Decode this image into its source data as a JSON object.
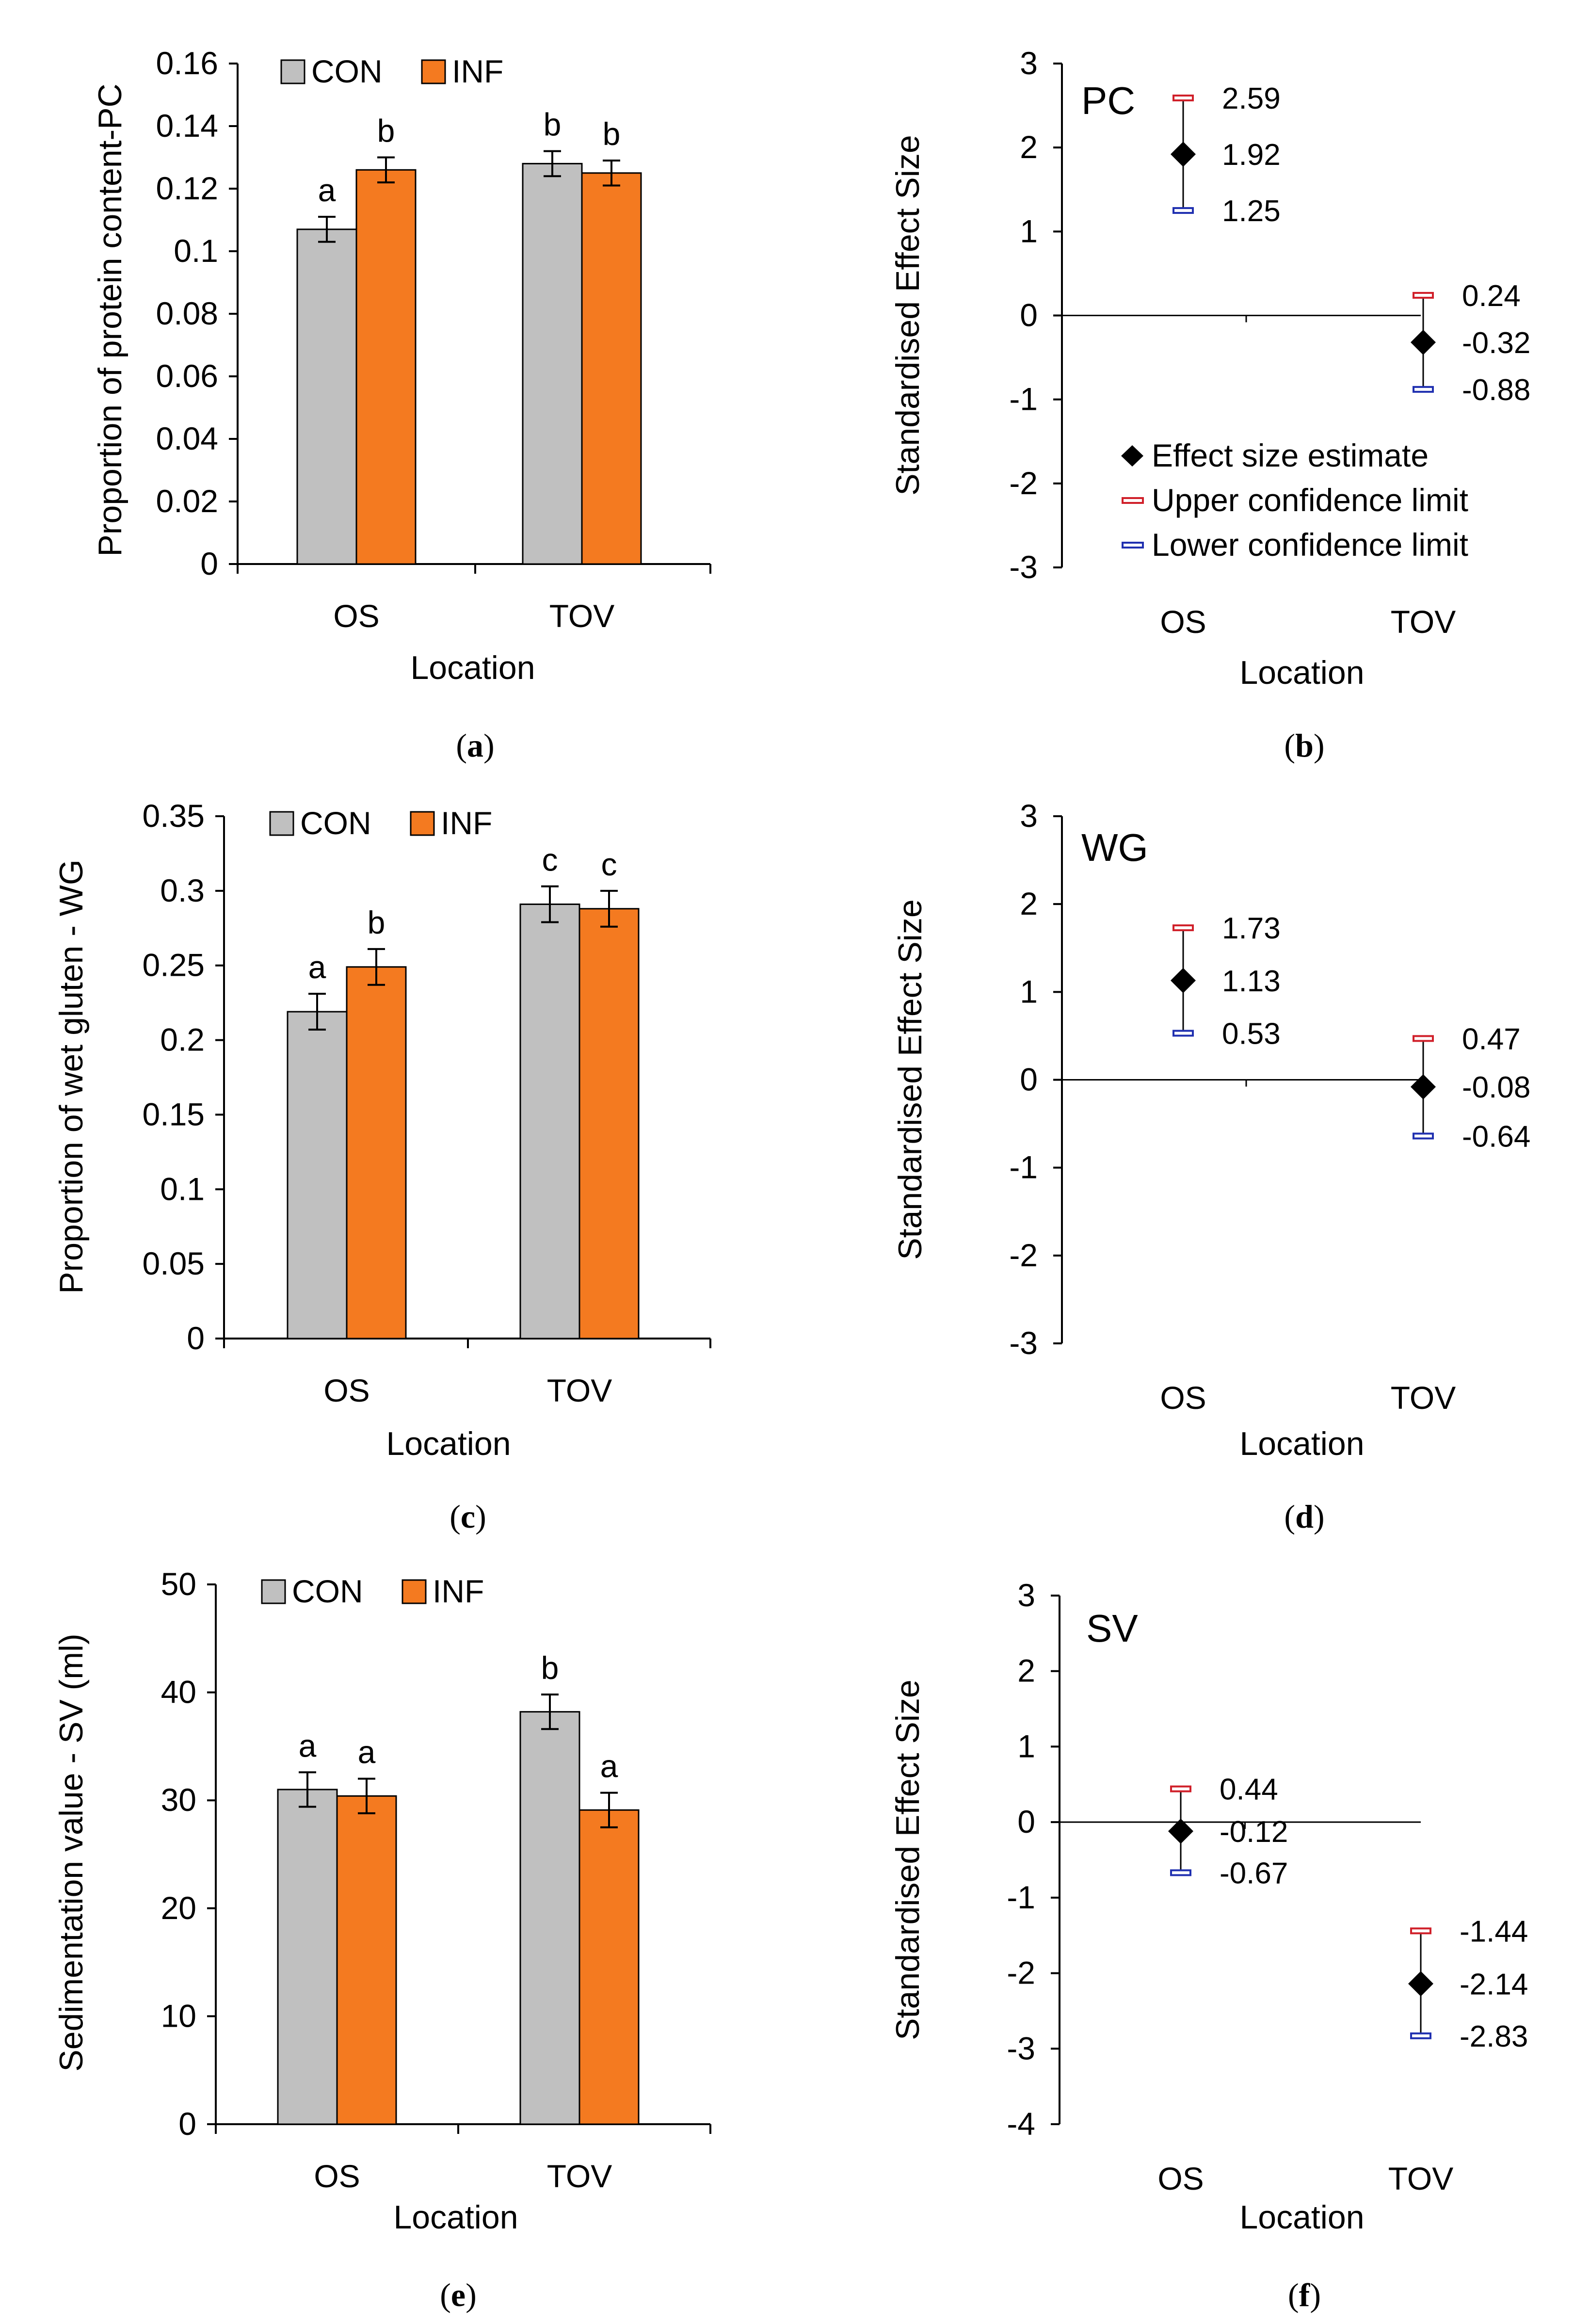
{
  "chart_data": [
    {
      "type": "bar",
      "panel": "(a)",
      "categories": [
        "OS",
        "TOV"
      ],
      "series": [
        {
          "name": "CON",
          "color": "#c0c0c0",
          "values": [
            0.107,
            0.128
          ],
          "errors": [
            0.004,
            0.004
          ],
          "letters": [
            "a",
            "b"
          ]
        },
        {
          "name": "INF",
          "color": "#f47a20",
          "values": [
            0.126,
            0.125
          ],
          "errors": [
            0.004,
            0.004
          ],
          "letters": [
            "b",
            "b"
          ]
        }
      ],
      "xlabel": "Location",
      "ylabel": "Proportion of protein content-PC",
      "ylim": [
        0,
        0.16
      ],
      "yticks": [
        "0",
        "0.02",
        "0.04",
        "0.06",
        "0.08",
        "0.1",
        "0.12",
        "0.14",
        "0.16"
      ],
      "panel_label": "a"
    },
    {
      "type": "scatter",
      "panel": "(b)",
      "inset_label": "PC",
      "categories": [
        "OS",
        "TOV"
      ],
      "estimates": [
        1.92,
        -0.32
      ],
      "upper": [
        2.59,
        0.24
      ],
      "lower": [
        1.25,
        -0.88
      ],
      "estimate_labels": [
        "1.92",
        "-0.32"
      ],
      "upper_labels": [
        "2.59",
        "0.24"
      ],
      "lower_labels": [
        "1.25",
        "-0.88"
      ],
      "xlabel": "Location",
      "ylabel": "Standardised Effect Size",
      "ylim": [
        -3,
        3
      ],
      "yticks": [
        "-3",
        "-2",
        "-1",
        "0",
        "1",
        "2",
        "3"
      ],
      "legend": [
        "Effect size estimate",
        "Upper confidence limit",
        "Lower confidence limit"
      ],
      "panel_label": "b"
    },
    {
      "type": "bar",
      "panel": "(c)",
      "categories": [
        "OS",
        "TOV"
      ],
      "series": [
        {
          "name": "CON",
          "color": "#c0c0c0",
          "values": [
            0.219,
            0.291
          ],
          "errors": [
            0.012,
            0.012
          ],
          "letters": [
            "a",
            "c"
          ]
        },
        {
          "name": "INF",
          "color": "#f47a20",
          "values": [
            0.249,
            0.288
          ],
          "errors": [
            0.012,
            0.012
          ],
          "letters": [
            "b",
            "c"
          ]
        }
      ],
      "xlabel": "Location",
      "ylabel": "Proportion of wet gluten - WG",
      "ylim": [
        0,
        0.35
      ],
      "yticks": [
        "0",
        "0.05",
        "0.1",
        "0.15",
        "0.2",
        "0.25",
        "0.3",
        "0.35"
      ],
      "panel_label": "c"
    },
    {
      "type": "scatter",
      "panel": "(d)",
      "inset_label": "WG",
      "categories": [
        "OS",
        "TOV"
      ],
      "estimates": [
        1.13,
        -0.08
      ],
      "upper": [
        1.73,
        0.47
      ],
      "lower": [
        0.53,
        -0.64
      ],
      "estimate_labels": [
        "1.13",
        "-0.08"
      ],
      "upper_labels": [
        "1.73",
        "0.47"
      ],
      "lower_labels": [
        "0.53",
        "-0.64"
      ],
      "xlabel": "Location",
      "ylabel": "Standardised Effect Size",
      "ylim": [
        -3,
        3
      ],
      "yticks": [
        "-3",
        "-2",
        "-1",
        "0",
        "1",
        "2",
        "3"
      ],
      "panel_label": "d"
    },
    {
      "type": "bar",
      "panel": "(e)",
      "categories": [
        "OS",
        "TOV"
      ],
      "series": [
        {
          "name": "CON",
          "color": "#c0c0c0",
          "values": [
            31.0,
            38.2
          ],
          "errors": [
            1.6,
            1.6
          ],
          "letters": [
            "a",
            "b"
          ]
        },
        {
          "name": "INF",
          "color": "#f47a20",
          "values": [
            30.4,
            29.1
          ],
          "errors": [
            1.6,
            1.6
          ],
          "letters": [
            "a",
            "a"
          ]
        }
      ],
      "xlabel": "Location",
      "ylabel": "Sedimentation value - SV (ml)",
      "ylim": [
        0,
        50
      ],
      "yticks": [
        "0",
        "10",
        "20",
        "30",
        "40",
        "50"
      ],
      "panel_label": "e"
    },
    {
      "type": "scatter",
      "panel": "(f)",
      "inset_label": "SV",
      "categories": [
        "OS",
        "TOV"
      ],
      "estimates": [
        -0.12,
        -2.14
      ],
      "upper": [
        0.44,
        -1.44
      ],
      "lower": [
        -0.67,
        -2.83
      ],
      "estimate_labels": [
        "-0.12",
        "-2.14"
      ],
      "upper_labels": [
        "0.44",
        "-1.44"
      ],
      "lower_labels": [
        "-0.67",
        "-2.83"
      ],
      "xlabel": "Location",
      "ylabel": "Standardised Effect Size",
      "ylim": [
        -4,
        3
      ],
      "yticks": [
        "-4",
        "-3",
        "-2",
        "-1",
        "0",
        "1",
        "2",
        "3"
      ],
      "panel_label": "f"
    }
  ],
  "colors": {
    "con": "#c0c0c0",
    "inf": "#f47a20",
    "upper_marker": "#d0202a",
    "lower_marker": "#2030b0",
    "estimate": "#000000"
  }
}
